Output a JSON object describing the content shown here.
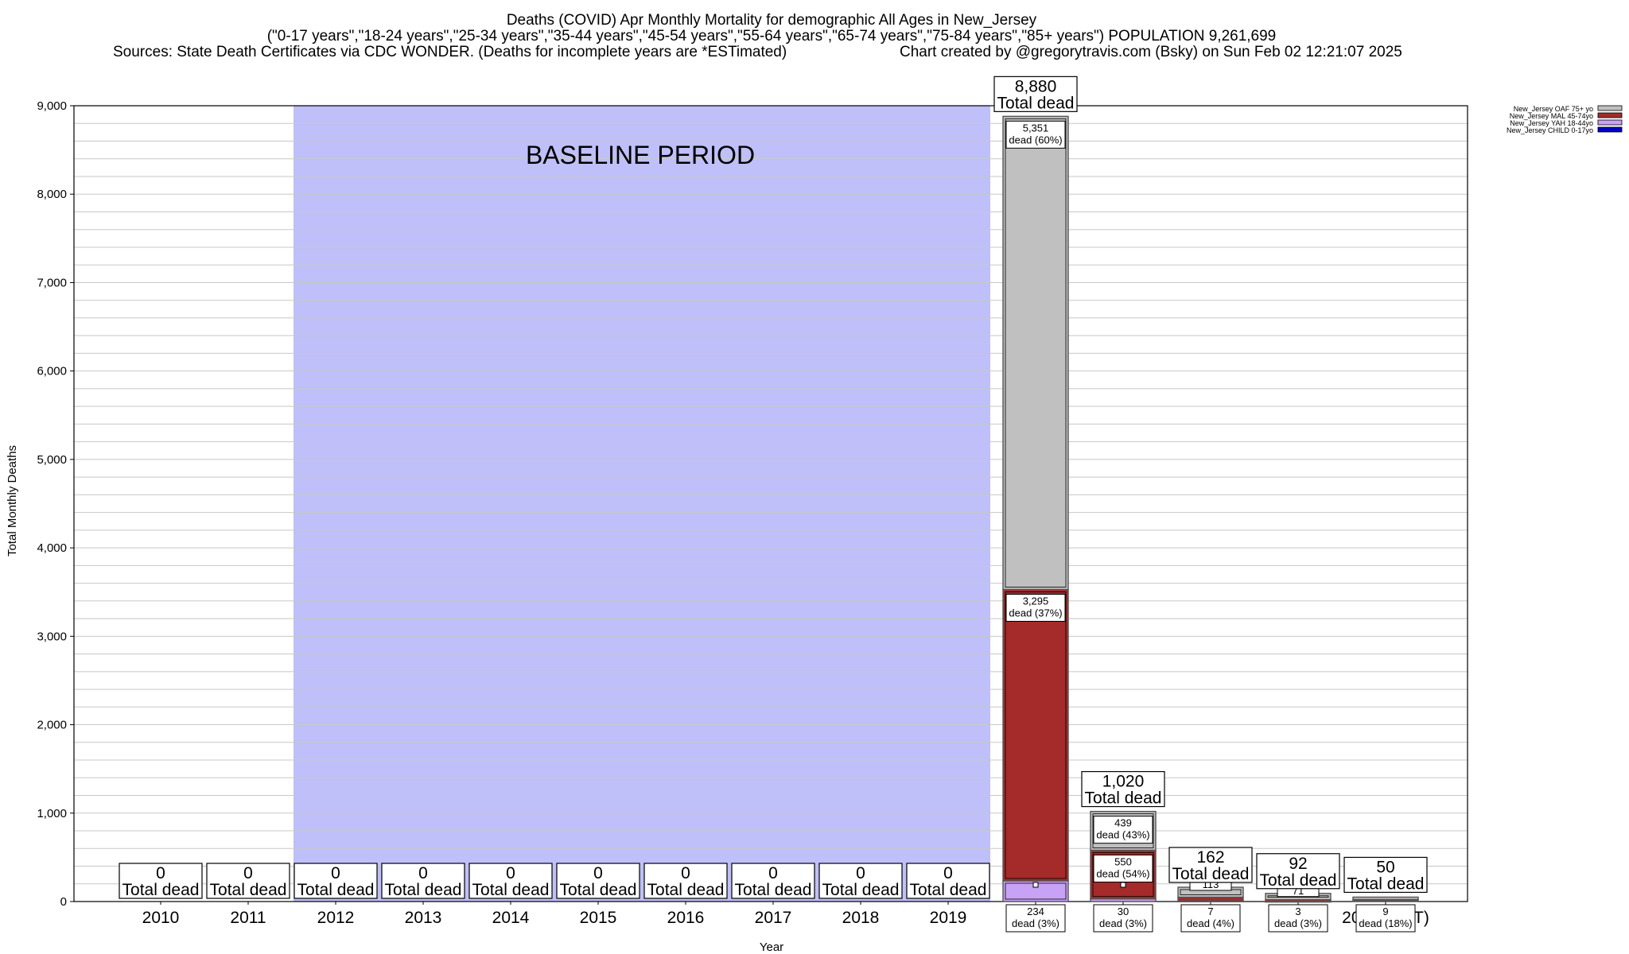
{
  "header": {
    "title": "Deaths (COVID) Apr Monthly Mortality for demographic All Ages in New_Jersey",
    "subtitle": "(\"0-17 years\",\"18-24 years\",\"25-34 years\",\"35-44 years\",\"45-54 years\",\"55-64 years\",\"65-74 years\",\"75-84 years\",\"85+ years\") POPULATION 9,261,699",
    "sources": "Sources: State Death Certificates via CDC WONDER. (Deaths for incomplete years are *ESTimated)",
    "credit": "Chart created by @gregorytravis.com (Bsky) on Sun Feb 02 12:21:07 2025"
  },
  "chart_data": {
    "type": "bar",
    "stacked": true,
    "xlabel": "Year",
    "ylabel": "Total Monthly Deaths",
    "ylim": [
      0,
      9000
    ],
    "yticks": [
      0,
      1000,
      2000,
      3000,
      4000,
      5000,
      6000,
      7000,
      8000,
      9000
    ],
    "ytick_labels": [
      "0",
      "1,000",
      "2,000",
      "3,000",
      "4,000",
      "5,000",
      "6,000",
      "7,000",
      "8,000",
      "9,000"
    ],
    "grid": true,
    "categories": [
      "2010",
      "2011",
      "2012",
      "2013",
      "2014",
      "2015",
      "2016",
      "2017",
      "2018",
      "2019",
      "2020",
      "2021",
      "2022",
      "2023",
      "2024(*EST)"
    ],
    "baseline": {
      "label": "BASELINE PERIOD",
      "from": "2012",
      "to": "2019",
      "color": "#bfbff9"
    },
    "legend_position": "top-right",
    "series": [
      {
        "name": "New_Jersey CHILD 0-17yo",
        "color": "#0000c8",
        "values": [
          0,
          0,
          0,
          0,
          0,
          0,
          0,
          0,
          0,
          0,
          0,
          0,
          0,
          0,
          0
        ]
      },
      {
        "name": "New_Jersey YAH 18-44yo",
        "color": "#c8a2f5",
        "values": [
          0,
          0,
          0,
          0,
          0,
          0,
          0,
          0,
          0,
          0,
          234,
          30,
          7,
          3,
          9
        ]
      },
      {
        "name": "New_Jersey MAL 45-74yo",
        "color": "#a52a2a",
        "values": [
          0,
          0,
          0,
          0,
          0,
          0,
          0,
          0,
          0,
          0,
          3295,
          550,
          42,
          18,
          14
        ]
      },
      {
        "name": "New_Jersey OAF 75+ yo",
        "color": "#c0c0c0",
        "values": [
          0,
          0,
          0,
          0,
          0,
          0,
          0,
          0,
          0,
          0,
          5351,
          439,
          113,
          71,
          27
        ]
      }
    ],
    "totals": [
      0,
      0,
      0,
      0,
      0,
      0,
      0,
      0,
      0,
      0,
      8880,
      1020,
      162,
      92,
      50
    ],
    "total_labels": [
      "0",
      "0",
      "0",
      "0",
      "0",
      "0",
      "0",
      "0",
      "0",
      "0",
      "8,880",
      "1,020",
      "162",
      "92",
      "50"
    ],
    "total_suffix": "Total dead",
    "segment_labels": [
      {
        "year": "2020",
        "series": 3,
        "value": "5,351",
        "pct": "dead (60%)"
      },
      {
        "year": "2020",
        "series": 2,
        "value": "3,295",
        "pct": "dead (37%)"
      },
      {
        "year": "2020",
        "series": 1,
        "value": "234",
        "pct": "dead (3%)"
      },
      {
        "year": "2021",
        "series": 3,
        "value": "439",
        "pct": "dead (43%)"
      },
      {
        "year": "2021",
        "series": 2,
        "value": "550",
        "pct": "dead (54%)"
      },
      {
        "year": "2021",
        "series": 1,
        "value": "30",
        "pct": "dead (3%)"
      },
      {
        "year": "2022",
        "series": 3,
        "value": "113",
        "pct": ""
      },
      {
        "year": "2022",
        "series": 1,
        "value": "7",
        "pct": "dead (4%)"
      },
      {
        "year": "2023",
        "series": 3,
        "value": "71",
        "pct": ""
      },
      {
        "year": "2023",
        "series": 1,
        "value": "3",
        "pct": "dead (3%)"
      },
      {
        "year": "2024(*EST)",
        "series": 1,
        "value": "9",
        "pct": "dead (18%)"
      }
    ]
  }
}
